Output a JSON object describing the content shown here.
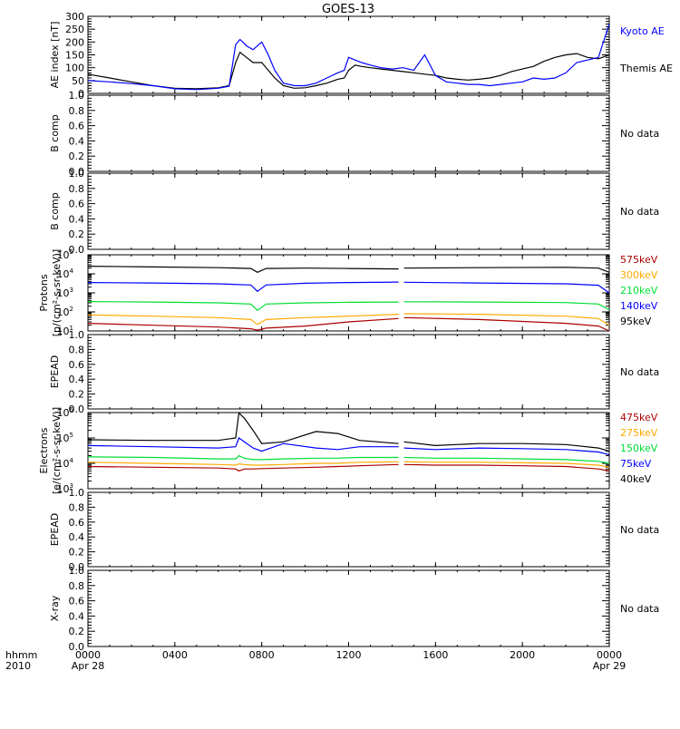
{
  "title": "GOES-13",
  "time_axis": {
    "row_labels": [
      "hhmm",
      "2010"
    ],
    "ticks": [
      {
        "hour": 0,
        "label": "0000",
        "date": "Apr 28"
      },
      {
        "hour": 4,
        "label": "0400",
        "date": ""
      },
      {
        "hour": 8,
        "label": "0800",
        "date": ""
      },
      {
        "hour": 12,
        "label": "1200",
        "date": ""
      },
      {
        "hour": 16,
        "label": "1600",
        "date": ""
      },
      {
        "hour": 20,
        "label": "2000",
        "date": ""
      },
      {
        "hour": 24,
        "label": "0000",
        "date": "Apr 29"
      }
    ],
    "range_hours": [
      0,
      24
    ]
  },
  "colors": {
    "black": "#000000",
    "blue": "#0000ff",
    "green": "#00dd33",
    "orange": "#ffaa00",
    "darkred": "#aa0000"
  },
  "chart_data": [
    {
      "type": "line",
      "ylabel": "AE index [nT]",
      "ylim": [
        0,
        300
      ],
      "yticks": [
        0,
        50,
        100,
        150,
        200,
        250,
        300
      ],
      "legend": [
        {
          "text": "Kyoto AE",
          "color": "#0000ff"
        },
        {
          "text": "Themis AE",
          "color": "#000000"
        }
      ],
      "series": [
        {
          "name": "Themis AE",
          "color": "#000000",
          "x": [
            0,
            1,
            2,
            3,
            4,
            5,
            6,
            6.5,
            6.8,
            7,
            7.3,
            7.6,
            8,
            8.3,
            8.6,
            9,
            9.5,
            10,
            10.5,
            11,
            11.5,
            11.8,
            12,
            12.3,
            12.6,
            13,
            13.5,
            14,
            14.5,
            15,
            15.5,
            16,
            16.5,
            17,
            17.5,
            18,
            18.5,
            19,
            19.5,
            20,
            20.5,
            21,
            21.5,
            22,
            22.5,
            23,
            23.5,
            24
          ],
          "y": [
            75,
            60,
            45,
            30,
            20,
            18,
            22,
            30,
            120,
            160,
            140,
            120,
            120,
            90,
            60,
            30,
            20,
            22,
            30,
            40,
            55,
            60,
            90,
            110,
            105,
            100,
            95,
            90,
            85,
            80,
            75,
            70,
            60,
            55,
            52,
            55,
            60,
            70,
            85,
            95,
            105,
            125,
            140,
            150,
            155,
            140,
            135,
            150
          ]
        },
        {
          "name": "Kyoto AE",
          "color": "#0000ff",
          "x": [
            0,
            1,
            2,
            3,
            4,
            5,
            6,
            6.5,
            6.8,
            7,
            7.3,
            7.6,
            8,
            8.3,
            8.6,
            9,
            9.5,
            10,
            10.5,
            11,
            11.5,
            11.8,
            12,
            12.3,
            12.6,
            13,
            13.5,
            14,
            14.5,
            15,
            15.5,
            16,
            16.5,
            17,
            17.5,
            18,
            18.5,
            19,
            19.5,
            20,
            20.5,
            21,
            21.5,
            22,
            22.5,
            23,
            23.5,
            24
          ],
          "y": [
            50,
            45,
            38,
            30,
            18,
            15,
            20,
            28,
            190,
            210,
            185,
            170,
            200,
            150,
            90,
            40,
            30,
            30,
            40,
            60,
            80,
            90,
            140,
            130,
            120,
            110,
            100,
            95,
            100,
            90,
            150,
            70,
            45,
            40,
            35,
            35,
            30,
            35,
            40,
            45,
            60,
            55,
            60,
            80,
            120,
            130,
            140,
            270
          ]
        }
      ]
    },
    {
      "type": "line",
      "ylabel": "B comp",
      "ylim": [
        0,
        1
      ],
      "yticks": [
        0.0,
        0.2,
        0.4,
        0.6,
        0.8,
        1.0
      ],
      "status": "No data"
    },
    {
      "type": "line",
      "ylabel": "B comp",
      "ylim": [
        0,
        1
      ],
      "yticks": [
        0.0,
        0.2,
        0.4,
        0.6,
        0.8,
        1.0
      ],
      "status": "No data"
    },
    {
      "type": "line",
      "ylabel_lines": [
        "Protons",
        "[p/(cm²-s-sr-keV)]"
      ],
      "log_scale": true,
      "ylim": [
        10,
        100000
      ],
      "gap_hours": [
        14.35,
        14.5
      ],
      "legend": [
        {
          "text": "575keV",
          "color": "#aa0000"
        },
        {
          "text": "300keV",
          "color": "#ffaa00"
        },
        {
          "text": "210keV",
          "color": "#00dd33"
        },
        {
          "text": "140keV",
          "color": "#0000ff"
        },
        {
          "text": "95keV",
          "color": "#000000"
        }
      ],
      "series": [
        {
          "name": "95keV",
          "color": "#000000",
          "x": [
            0,
            3,
            6,
            7.5,
            7.8,
            8.2,
            10,
            12,
            14.3,
            14.55,
            18,
            22,
            23.5,
            24
          ],
          "y": [
            25000,
            23000,
            21000,
            19000,
            12000,
            19000,
            20000,
            19000,
            18000,
            20000,
            21000,
            22000,
            20000,
            12000
          ]
        },
        {
          "name": "140keV",
          "color": "#0000ff",
          "x": [
            0,
            3,
            6,
            7.5,
            7.8,
            8.2,
            10,
            12,
            14.3,
            14.55,
            18,
            22,
            23.5,
            24
          ],
          "y": [
            3500,
            3300,
            3000,
            2600,
            1200,
            2600,
            3200,
            3500,
            3700,
            3600,
            3300,
            3000,
            2500,
            1000
          ]
        },
        {
          "name": "210keV",
          "color": "#00dd33",
          "x": [
            0,
            3,
            6,
            7.5,
            7.8,
            8.2,
            10,
            12,
            14.3,
            14.55,
            18,
            22,
            23.5,
            24
          ],
          "y": [
            350,
            330,
            300,
            260,
            120,
            260,
            300,
            320,
            330,
            340,
            330,
            310,
            260,
            130
          ]
        },
        {
          "name": "300keV",
          "color": "#ffaa00",
          "x": [
            0,
            3,
            6,
            7.5,
            7.8,
            8.2,
            10,
            12,
            14.3,
            14.55,
            18,
            22,
            23.5,
            24
          ],
          "y": [
            70,
            60,
            50,
            40,
            22,
            40,
            50,
            60,
            75,
            80,
            75,
            60,
            45,
            20
          ]
        },
        {
          "name": "575keV",
          "color": "#aa0000",
          "x": [
            0,
            3,
            6,
            7.5,
            7.8,
            8.2,
            10,
            12,
            14.3,
            14.55,
            18,
            22,
            23.5,
            24
          ],
          "y": [
            25,
            20,
            16,
            13,
            11,
            14,
            18,
            30,
            45,
            50,
            40,
            25,
            18,
            10
          ]
        }
      ]
    },
    {
      "type": "line",
      "ylabel": "EPEAD",
      "ylim": [
        0,
        1
      ],
      "yticks": [
        0.0,
        0.2,
        0.4,
        0.6,
        0.8,
        1.0
      ],
      "status": "No data"
    },
    {
      "type": "line",
      "ylabel_lines": [
        "Electrons",
        "[e/(cm²-s-sr-keV)]"
      ],
      "log_scale": true,
      "ylim": [
        1000,
        1000000
      ],
      "gap_hours": [
        14.35,
        14.5
      ],
      "legend": [
        {
          "text": "475keV",
          "color": "#aa0000"
        },
        {
          "text": "275keV",
          "color": "#ffaa00"
        },
        {
          "text": "150keV",
          "color": "#00dd33"
        },
        {
          "text": "75keV",
          "color": "#0000ff"
        },
        {
          "text": "40keV",
          "color": "#000000"
        }
      ],
      "series": [
        {
          "name": "40keV",
          "color": "#000000",
          "x": [
            0,
            3,
            6,
            6.8,
            6.95,
            7.2,
            7.6,
            8,
            9,
            10.5,
            11.5,
            12.5,
            14.3,
            14.55,
            16,
            18,
            20,
            22,
            23.5,
            24
          ],
          "y": [
            85000,
            80000,
            80000,
            100000,
            950000,
            600000,
            200000,
            60000,
            70000,
            180000,
            150000,
            80000,
            60000,
            70000,
            50000,
            60000,
            60000,
            55000,
            40000,
            30000
          ]
        },
        {
          "name": "75keV",
          "color": "#0000ff",
          "x": [
            0,
            3,
            6,
            6.8,
            6.95,
            7.2,
            7.6,
            8,
            9,
            10.5,
            11.5,
            12.5,
            14.3,
            14.55,
            16,
            18,
            20,
            22,
            23.5,
            24
          ],
          "y": [
            50000,
            45000,
            40000,
            45000,
            100000,
            70000,
            40000,
            30000,
            60000,
            40000,
            35000,
            45000,
            45000,
            40000,
            35000,
            40000,
            38000,
            35000,
            28000,
            22000
          ]
        },
        {
          "name": "150keV",
          "color": "#00dd33",
          "x": [
            0,
            3,
            6,
            6.8,
            6.95,
            7.2,
            7.6,
            8,
            9,
            10.5,
            11.5,
            12.5,
            14.3,
            14.55,
            16,
            18,
            20,
            22,
            23.5,
            24
          ],
          "y": [
            18000,
            17000,
            15000,
            15000,
            20000,
            16000,
            14000,
            14000,
            15000,
            16000,
            16000,
            17000,
            17000,
            17000,
            16000,
            16000,
            15000,
            14000,
            12000,
            10000
          ]
        },
        {
          "name": "275keV",
          "color": "#ffaa00",
          "x": [
            0,
            3,
            6,
            6.8,
            6.95,
            7.2,
            7.6,
            8,
            9,
            10.5,
            11.5,
            12.5,
            14.3,
            14.55,
            16,
            18,
            20,
            22,
            23.5,
            24
          ],
          "y": [
            11000,
            10000,
            9000,
            8500,
            9500,
            9000,
            8500,
            8500,
            9000,
            10000,
            10000,
            11000,
            11500,
            11500,
            11000,
            11000,
            10500,
            10000,
            8500,
            7000
          ]
        },
        {
          "name": "475keV",
          "color": "#aa0000",
          "x": [
            0,
            3,
            6,
            6.8,
            6.95,
            7.2,
            7.6,
            8,
            9,
            10.5,
            11.5,
            12.5,
            14.3,
            14.55,
            16,
            18,
            20,
            22,
            23.5,
            24
          ],
          "y": [
            7500,
            7000,
            6500,
            6000,
            5000,
            6000,
            6000,
            6200,
            6500,
            7000,
            7500,
            8000,
            9000,
            9000,
            8500,
            8500,
            8000,
            7500,
            6000,
            5000
          ]
        }
      ]
    },
    {
      "type": "line",
      "ylabel": "EPEAD",
      "ylim": [
        0,
        1
      ],
      "yticks": [
        0.0,
        0.2,
        0.4,
        0.6,
        0.8,
        1.0
      ],
      "status": "No data"
    },
    {
      "type": "line",
      "ylabel": "X-ray",
      "ylim": [
        0,
        1
      ],
      "yticks": [
        0.0,
        0.2,
        0.4,
        0.6,
        0.8,
        1.0
      ],
      "status": "No data"
    }
  ]
}
